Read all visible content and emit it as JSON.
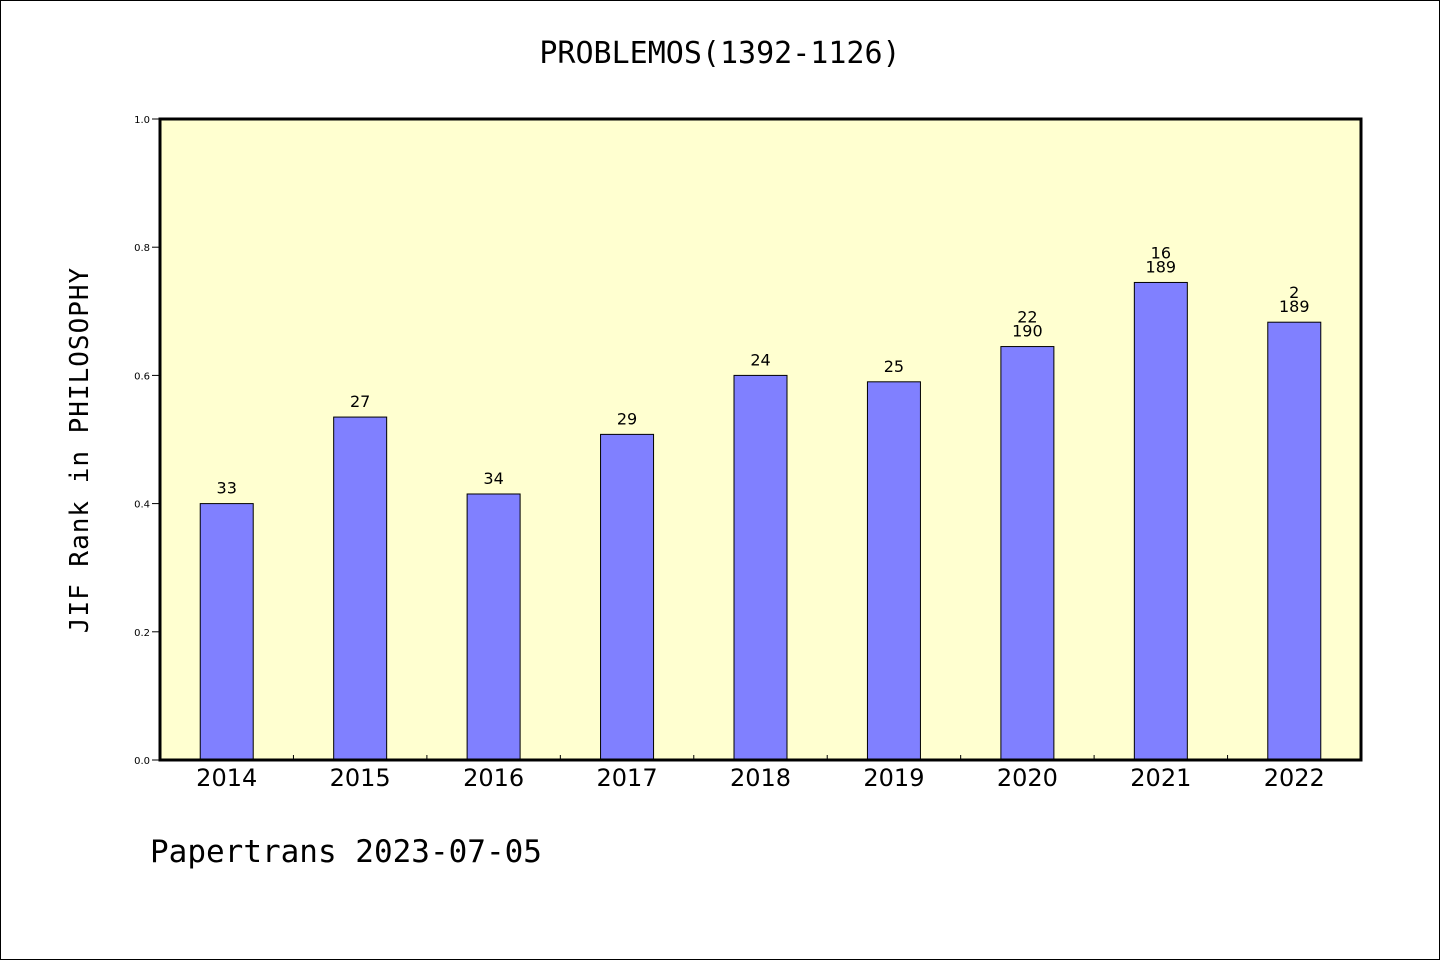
{
  "chart_data": {
    "type": "bar",
    "title": "PROBLEMOS(1392-1126)",
    "ylabel": "JIF Rank in PHILOSOPHY",
    "xlabel": "",
    "ylim": [
      0,
      1.0
    ],
    "yticks": [
      "0.0",
      "0.2",
      "0.4",
      "0.6",
      "0.8",
      "1.0"
    ],
    "categories": [
      "2014",
      "2015",
      "2016",
      "2017",
      "2018",
      "2019",
      "2020",
      "2021",
      "2022"
    ],
    "values": [
      0.4,
      0.535,
      0.415,
      0.508,
      0.6,
      0.59,
      0.645,
      0.745,
      0.683
    ],
    "labels": [
      [
        "33"
      ],
      [
        "27"
      ],
      [
        "34"
      ],
      [
        "29"
      ],
      [
        "24"
      ],
      [
        "25"
      ],
      [
        "22",
        "190"
      ],
      [
        "16",
        "189"
      ],
      [
        "2",
        "189"
      ]
    ],
    "colors": {
      "bar": "#8080ff",
      "plot_bg": "#ffffd0"
    },
    "grid": false,
    "legend": "none"
  },
  "footer": "Papertrans 2023-07-05"
}
